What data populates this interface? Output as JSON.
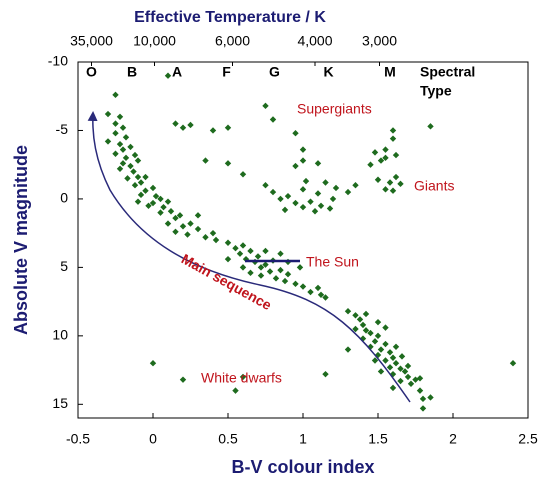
{
  "chart_data": {
    "type": "scatter",
    "title": "Effective Temperature / K",
    "x_label": "B-V colour index",
    "y_label": "Absolute V magnitude",
    "xlim": [
      -0.5,
      2.5
    ],
    "xticks": [
      -0.5,
      0,
      0.5,
      1,
      1.5,
      2,
      2.5
    ],
    "ylim": [
      -10,
      16
    ],
    "yticks": [
      -10,
      -5,
      0,
      5,
      10,
      15
    ],
    "y_inverted": true,
    "temperature_ticks": [
      {
        "value": -0.41,
        "label": "35,000"
      },
      {
        "value": 0.01,
        "label": "10,000"
      },
      {
        "value": 0.53,
        "label": "6,000"
      },
      {
        "value": 1.08,
        "label": "4,000"
      },
      {
        "value": 1.51,
        "label": "3,000"
      }
    ],
    "spectral_ticks": [
      {
        "value": -0.41,
        "label": "O"
      },
      {
        "value": -0.14,
        "label": "B"
      },
      {
        "value": 0.16,
        "label": "A"
      },
      {
        "value": 0.49,
        "label": "F"
      },
      {
        "value": 0.81,
        "label": "G"
      },
      {
        "value": 1.17,
        "label": "K"
      },
      {
        "value": 1.58,
        "label": "M"
      }
    ],
    "spectral_title": [
      "Spectral",
      "Type"
    ],
    "annotations": [
      "Supergiants",
      "Giants",
      "The Sun",
      "Main sequence",
      "White dwarfs"
    ],
    "color": "#1e6b1e",
    "x": [
      -0.25,
      -0.22,
      -0.2,
      -0.25,
      -0.18,
      -0.22,
      -0.2,
      -0.15,
      -0.25,
      -0.18,
      -0.12,
      -0.2,
      -0.15,
      -0.1,
      -0.22,
      -0.13,
      -0.1,
      -0.17,
      -0.08,
      -0.05,
      -0.12,
      -0.05,
      0,
      -0.08,
      0.02,
      0,
      0.05,
      -0.03,
      0.07,
      0.1,
      0.05,
      0.12,
      0.15,
      0.1,
      0.18,
      0.2,
      0.15,
      0.25,
      0.23,
      0.3,
      0.35,
      0.4,
      0.42,
      0.5,
      0.55,
      0.6,
      0.58,
      0.62,
      0.65,
      0.68,
      0.7,
      0.72,
      0.75,
      0.78,
      0.8,
      0.6,
      0.65,
      0.72,
      0.82,
      0.85,
      0.88,
      0.9,
      0.95,
      1.0,
      1.05,
      1.1,
      1.12,
      1.15,
      0.75,
      0.85,
      0.9,
      0.98,
      0.5,
      -0.3,
      -0.1,
      0.3,
      1.3,
      1.35,
      1.38,
      1.4,
      1.42,
      1.45,
      1.4,
      1.48,
      1.5,
      1.45,
      1.52,
      1.55,
      1.5,
      1.58,
      1.55,
      1.6,
      1.62,
      1.58,
      1.65,
      1.6,
      1.68,
      1.7,
      1.65,
      1.72,
      1.75,
      1.78,
      1.8,
      1.8,
      1.55,
      1.5,
      1.62,
      1.66,
      1.7,
      1.42,
      1.35,
      1.48,
      1.52,
      1.6,
      0.75,
      0.8,
      0.85,
      0.88,
      0.9,
      0.95,
      1.0,
      1.0,
      1.02,
      1.05,
      1.08,
      1.1,
      1.12,
      1.15,
      1.2,
      1.22,
      1.18,
      0.95,
      1.1,
      1.3,
      1.45,
      1.5,
      1.55,
      1.58,
      1.62,
      1.65,
      1.6,
      1.52,
      1.55,
      1.48,
      1.6,
      1.62,
      1.35,
      0.6,
      -0.25,
      0.1,
      0.15,
      0.2,
      0.25,
      0.4,
      0.5,
      0.35,
      0.5,
      0.75,
      0.8,
      0.95,
      1.0,
      1.0,
      1.6,
      1.85,
      1.55,
      -0.3,
      0,
      0.2,
      0.55,
      1.15,
      1.3,
      1.85,
      2.4,
      0.6,
      1.78
    ],
    "values": [
      -5.5,
      -6,
      -5.2,
      -4.8,
      -4.5,
      -4,
      -3.6,
      -3.8,
      -3.3,
      -3,
      -3.2,
      -2.6,
      -2.4,
      -2.8,
      -2.2,
      -2,
      -1.6,
      -1.5,
      -1.2,
      -1.6,
      -1,
      -0.6,
      -0.8,
      -0.3,
      -0.2,
      0.3,
      0,
      0.5,
      0.6,
      0.2,
      1,
      0.9,
      1.4,
      1.8,
      1.2,
      2,
      2.4,
      1.8,
      2.6,
      2.2,
      2.8,
      2.5,
      3,
      3.2,
      3.6,
      3.4,
      4,
      4.4,
      3.8,
      4.6,
      4.2,
      5,
      4.8,
      5.3,
      4.5,
      5,
      5.4,
      5.6,
      5.8,
      5.2,
      6,
      5.5,
      6.2,
      6.4,
      6.8,
      6.5,
      7,
      7.2,
      3.8,
      4,
      4.6,
      5,
      4.4,
      -4.2,
      0.2,
      1.2,
      8.2,
      8.5,
      8.8,
      9.2,
      9.6,
      9.8,
      10.2,
      10.4,
      10,
      10.8,
      11,
      10.6,
      11.4,
      11.2,
      11.8,
      11.6,
      12,
      12.3,
      12.4,
      12.8,
      12.6,
      13,
      13.3,
      13.5,
      13.2,
      14,
      14.6,
      15.3,
      9.4,
      9,
      10.8,
      11.5,
      12.2,
      8.4,
      9.5,
      11.8,
      12.6,
      13.8,
      -1,
      -0.5,
      0,
      0.8,
      -0.2,
      0.3,
      0.6,
      -0.7,
      -1.3,
      0.2,
      0.9,
      -0.4,
      0.5,
      -1.2,
      0,
      -0.8,
      0.7,
      -2.4,
      -2.6,
      -0.5,
      -2.5,
      -1.4,
      -0.7,
      -1.2,
      -1.6,
      -1.1,
      -0.6,
      -2.8,
      -3.6,
      -3.4,
      -4.4,
      -3.2,
      -1,
      -1.8,
      -7.6,
      -9,
      -5.5,
      -5.2,
      -5.4,
      -5,
      -2.6,
      -2.8,
      -5.2,
      -6.8,
      -5.8,
      -4.8,
      -3.6,
      -2.8,
      -5,
      -5.3,
      -3,
      -6.2,
      12,
      13.2,
      14,
      12.8,
      11,
      14.5,
      12,
      13,
      13.1
    ]
  }
}
